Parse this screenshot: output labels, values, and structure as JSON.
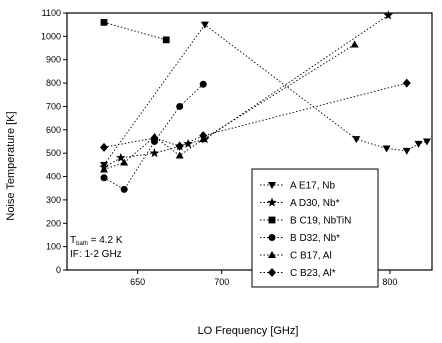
{
  "chart_data": {
    "type": "scatter",
    "xlabel": "LO Frequency [GHz]",
    "ylabel": "Noise Temperature [K]",
    "xlim": [
      608,
      825
    ],
    "ylim": [
      0,
      1100
    ],
    "xticks": [
      650,
      700,
      750,
      800
    ],
    "yticks": [
      0,
      100,
      200,
      300,
      400,
      500,
      600,
      700,
      800,
      900,
      1000,
      1100
    ],
    "grid": false,
    "legend_position": "lower-right",
    "annotation": {
      "line1_prefix": "T",
      "line1_sub": "bath",
      "line1_suffix": " = 4.2 K",
      "line2": "IF: 1-2 GHz"
    },
    "series": [
      {
        "name": "A E17, Nb",
        "marker": "triangle-down",
        "x": [
          630,
          690,
          780,
          798,
          810,
          817,
          822
        ],
        "y": [
          450,
          1050,
          560,
          520,
          510,
          540,
          550
        ]
      },
      {
        "name": "A D30, Nb*",
        "marker": "star",
        "x": [
          630,
          640,
          660,
          675,
          680,
          690,
          799
        ],
        "y": [
          440,
          480,
          500,
          530,
          540,
          560,
          1090
        ]
      },
      {
        "name": "B C19, NbTiN",
        "marker": "square",
        "x": [
          630,
          667
        ],
        "y": [
          1060,
          985
        ]
      },
      {
        "name": "B D32, Nb*",
        "marker": "circle",
        "x": [
          630,
          642,
          660,
          675,
          689
        ],
        "y": [
          395,
          345,
          550,
          700,
          795
        ]
      },
      {
        "name": "C B17, Al",
        "marker": "triangle-up",
        "x": [
          630,
          642,
          660,
          675,
          689,
          779
        ],
        "y": [
          430,
          460,
          570,
          490,
          560,
          965
        ]
      },
      {
        "name": "C B23, Al*",
        "marker": "diamond",
        "x": [
          630,
          660,
          675,
          689,
          810
        ],
        "y": [
          525,
          565,
          530,
          575,
          800
        ]
      }
    ]
  }
}
